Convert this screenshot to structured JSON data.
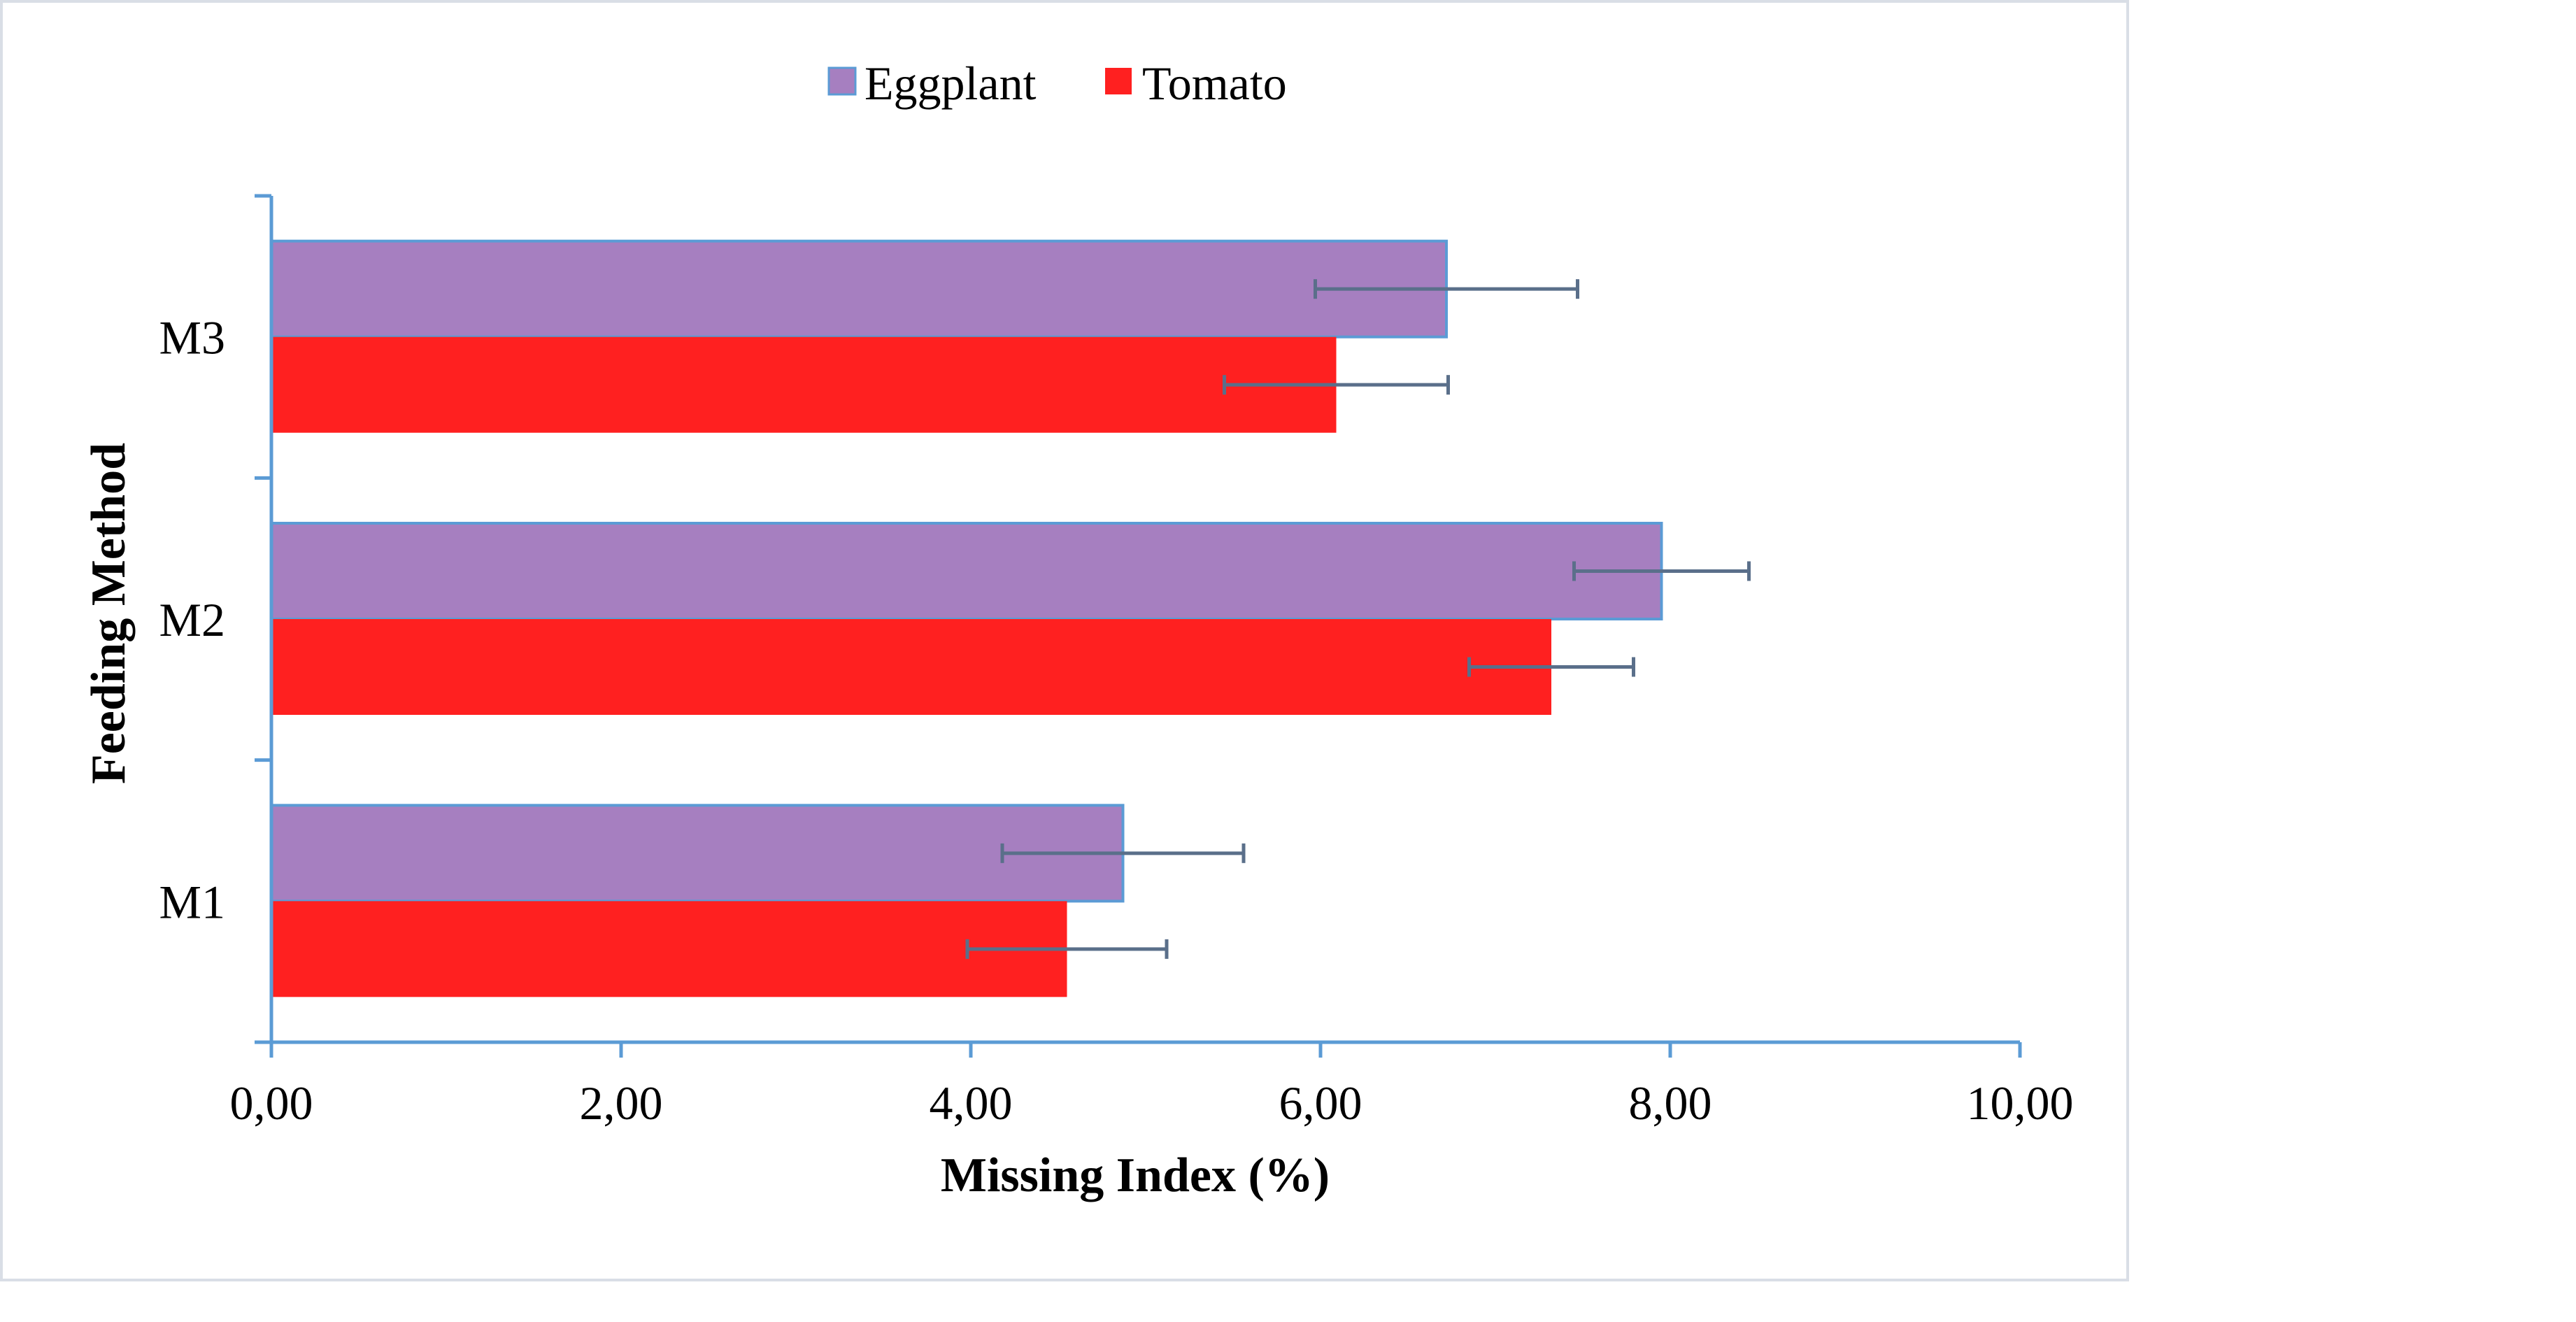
{
  "chart_data": {
    "type": "bar",
    "orientation": "horizontal",
    "categories": [
      "M1",
      "M2",
      "M3"
    ],
    "series": [
      {
        "name": "Eggplant",
        "values": [
          4.87,
          7.95,
          6.72
        ],
        "errors": [
          0.69,
          0.5,
          0.75
        ],
        "color": "#a67fc0"
      },
      {
        "name": "Tomato",
        "values": [
          4.55,
          7.32,
          6.09
        ],
        "errors": [
          0.57,
          0.47,
          0.64
        ],
        "color": "#ff2020"
      }
    ],
    "xlabel": "Missing Index (%)",
    "ylabel": "Feeding Method",
    "xlim": [
      0,
      10
    ],
    "xticks": [
      "0,00",
      "2,00",
      "4,00",
      "6,00",
      "8,00",
      "10,00"
    ],
    "grid": false,
    "legend": "top-center",
    "axis_color": "#5b9bd5",
    "error_bar_color": "#5a6f8a",
    "bar_border_color": "#5b9bd5",
    "frame_color": "#d9dee6"
  }
}
